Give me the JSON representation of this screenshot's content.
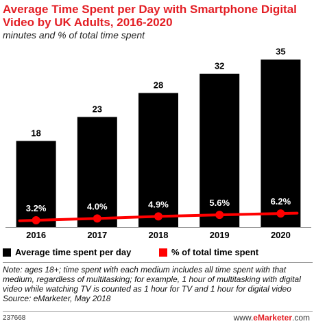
{
  "header": {
    "title": "Average Time Spent per Day with Smartphone Digital Video by UK Adults, 2016-2020",
    "subtitle": "minutes and % of total time spent"
  },
  "chart_data": {
    "type": "bar",
    "categories": [
      "2016",
      "2017",
      "2018",
      "2019",
      "2020"
    ],
    "series": [
      {
        "name": "Average time spent per day",
        "type": "bar",
        "values": [
          18,
          23,
          28,
          32,
          35
        ],
        "labels": [
          "18",
          "23",
          "28",
          "32",
          "35"
        ],
        "color": "#000000"
      },
      {
        "name": "% of total time spent",
        "type": "line",
        "values": [
          3.2,
          4.0,
          4.9,
          5.6,
          6.2
        ],
        "labels": [
          "3.2%",
          "4.0%",
          "4.9%",
          "5.6%",
          "6.2%"
        ],
        "color": "#ff0000"
      }
    ],
    "grid": false
  },
  "legend": {
    "items": [
      {
        "label": "Average time spent per day",
        "color": "#000000"
      },
      {
        "label": "% of total time spent",
        "color": "#ff0000"
      }
    ]
  },
  "note": {
    "text": "Note: ages 18+; time spent with each medium includes all time spent with that medium, regardless of multitasking; for example, 1 hour of multitasking with digital video while watching TV is counted as 1 hour for TV and 1 hour for digital video",
    "source": "Source: eMarketer, May 2018"
  },
  "footer": {
    "id": "237668",
    "brand_prefix": "www.",
    "brand_name": "eMarketer",
    "brand_suffix": ".com"
  }
}
